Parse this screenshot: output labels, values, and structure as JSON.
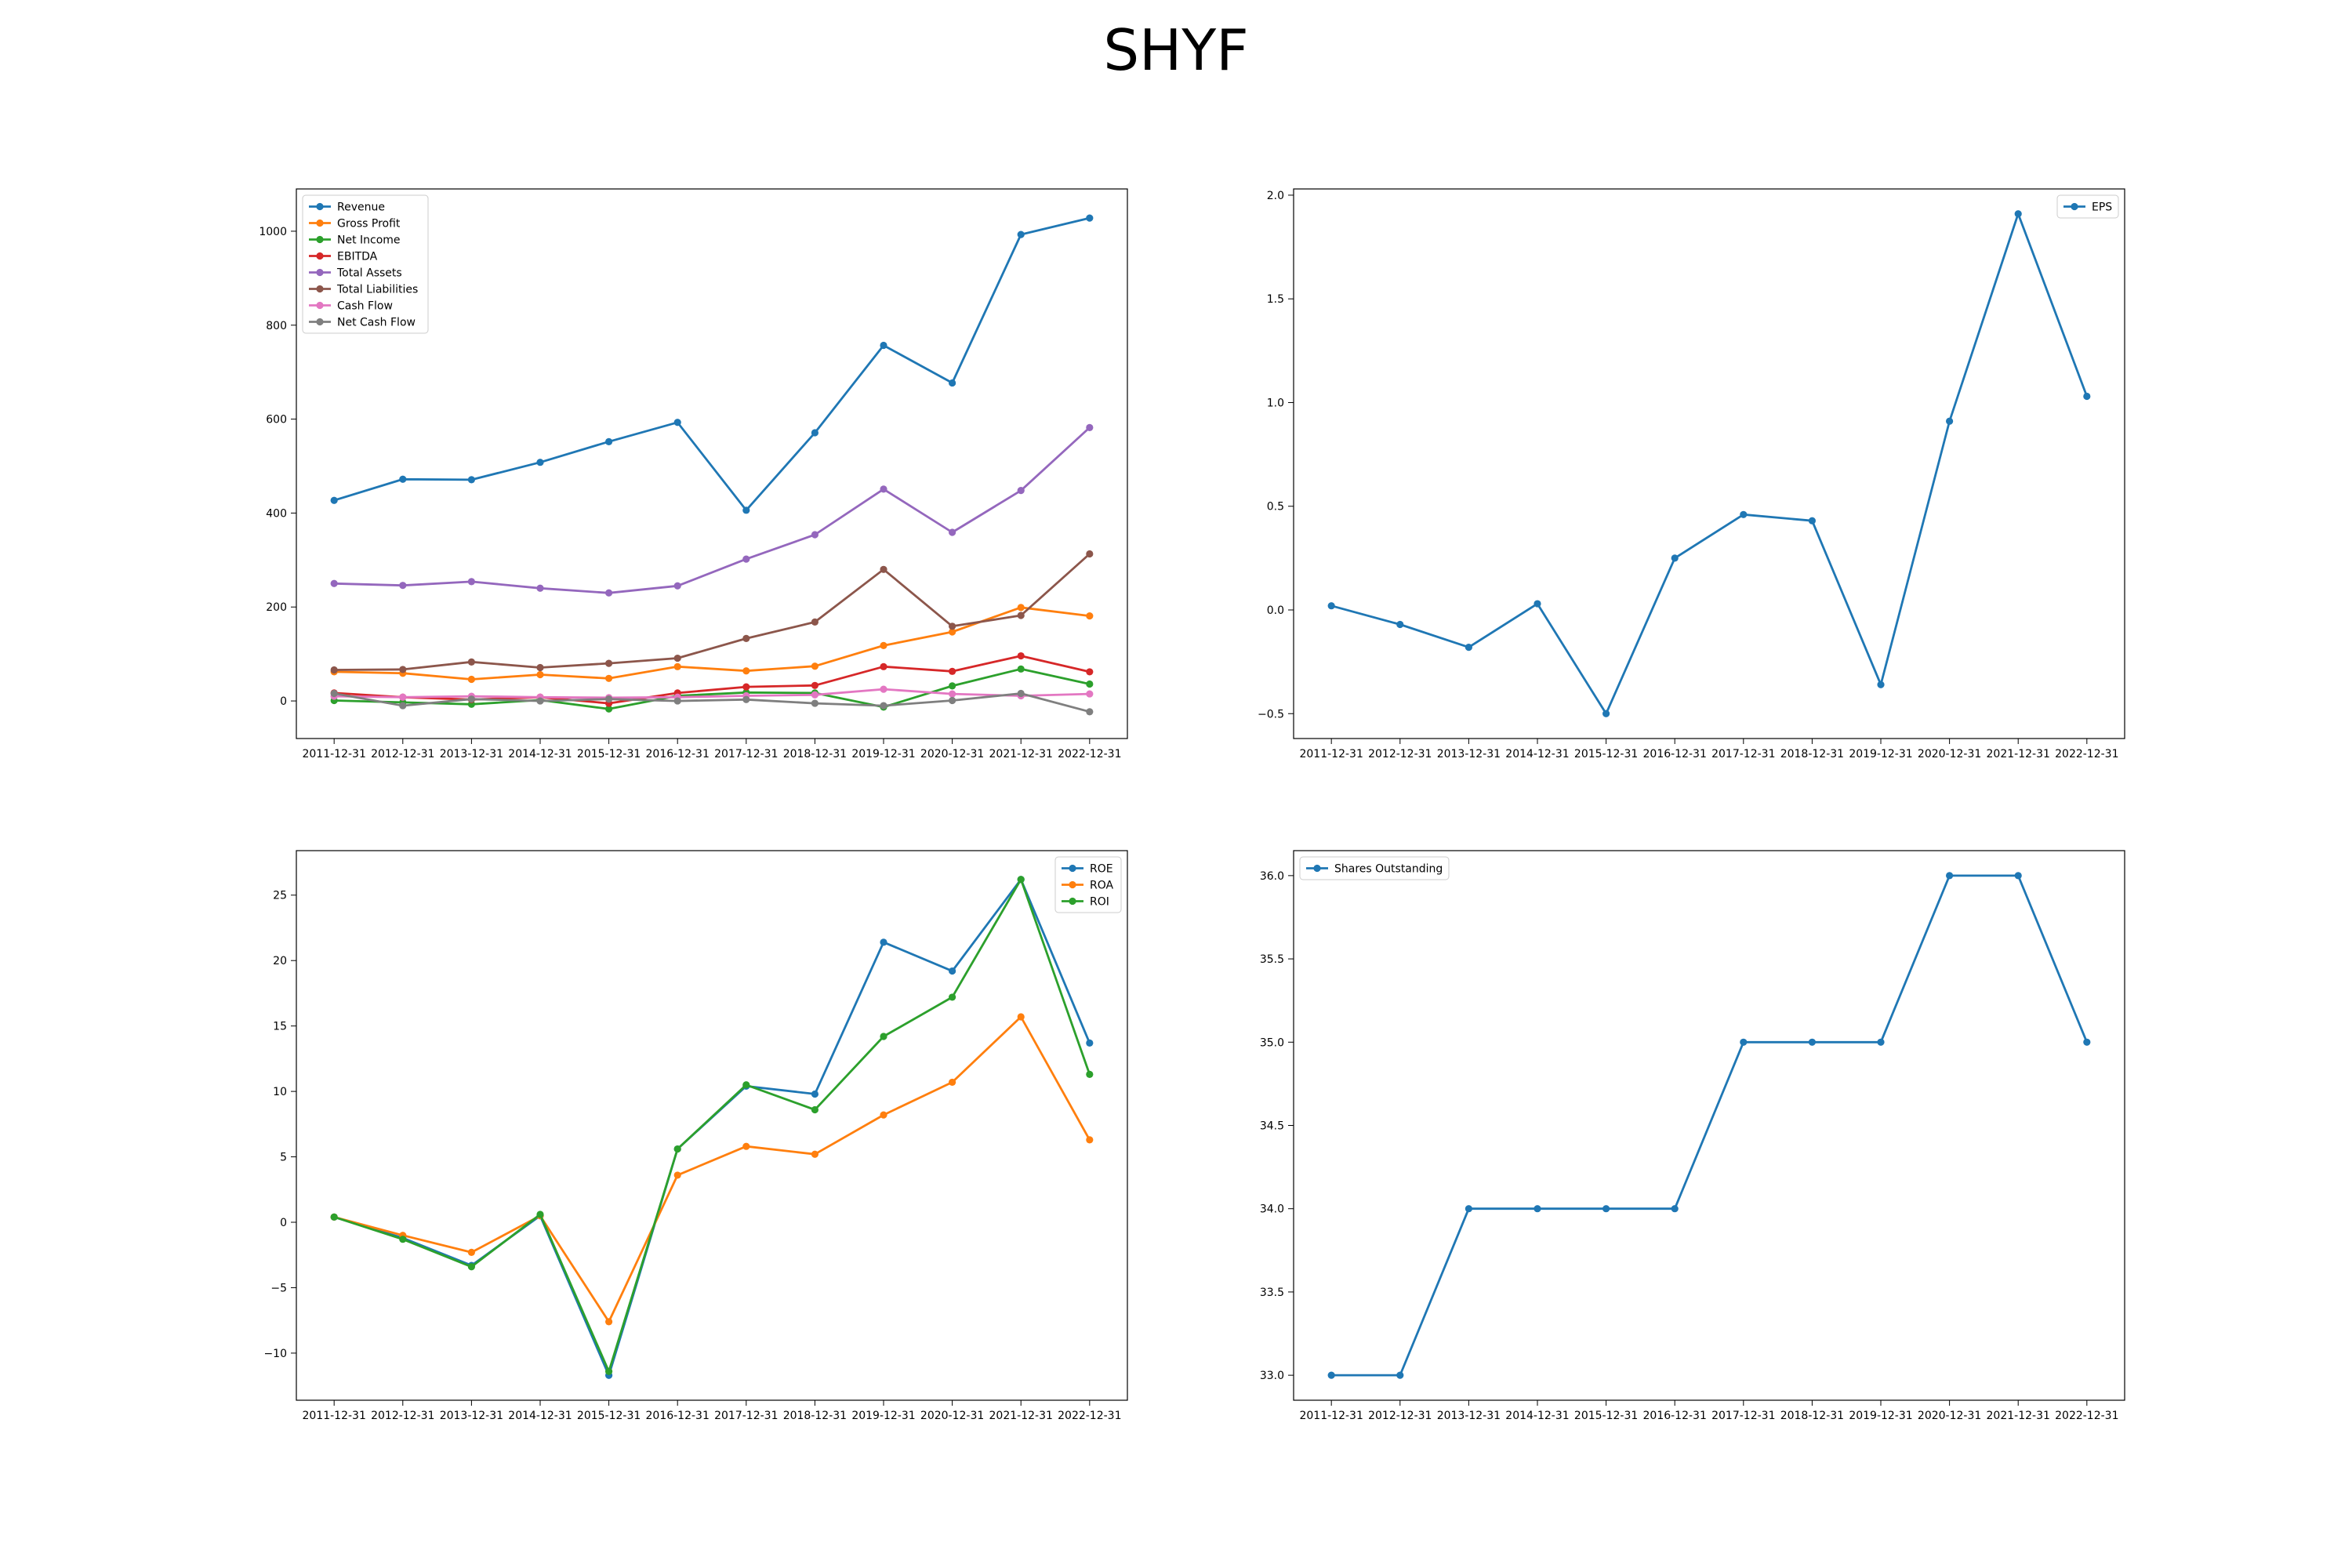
{
  "title": "SHYF",
  "chart_data": [
    {
      "type": "line",
      "categories": [
        "2011-12-31",
        "2012-12-31",
        "2013-12-31",
        "2014-12-31",
        "2015-12-31",
        "2016-12-31",
        "2017-12-31",
        "2018-12-31",
        "2019-12-31",
        "2020-12-31",
        "2021-12-31",
        "2022-12-31"
      ],
      "ylim": [
        -80,
        1090
      ],
      "yticks": [
        0,
        200,
        400,
        600,
        800,
        1000
      ],
      "ytick_labels": [
        "0",
        "200",
        "400",
        "600",
        "800",
        "1000"
      ],
      "grid": false,
      "legend": "upper left",
      "series": [
        {
          "name": "Revenue",
          "color": "#1f77b4",
          "values": [
            427,
            472,
            471,
            508,
            552,
            593,
            406,
            571,
            757,
            677,
            993,
            1028
          ]
        },
        {
          "name": "Gross Profit",
          "color": "#ff7f0e",
          "values": [
            62,
            59,
            46,
            56,
            48,
            73,
            64,
            74,
            118,
            147,
            199,
            181
          ]
        },
        {
          "name": "Net Income",
          "color": "#2ca02c",
          "values": [
            1,
            -3,
            -7,
            2,
            -17,
            11,
            18,
            17,
            -13,
            32,
            68,
            36
          ]
        },
        {
          "name": "EBITDA",
          "color": "#d62728",
          "values": [
            17,
            8,
            3,
            8,
            -5,
            17,
            30,
            33,
            73,
            63,
            96,
            62
          ]
        },
        {
          "name": "Total Assets",
          "color": "#9467bd",
          "values": [
            250,
            246,
            254,
            240,
            230,
            245,
            302,
            354,
            451,
            359,
            448,
            582
          ]
        },
        {
          "name": "Total Liabilities",
          "color": "#8c564b",
          "values": [
            66,
            67,
            83,
            71,
            80,
            91,
            133,
            168,
            280,
            159,
            182,
            313
          ]
        },
        {
          "name": "Cash Flow",
          "color": "#e377c2",
          "values": [
            10,
            8,
            10,
            8,
            7,
            8,
            11,
            13,
            25,
            15,
            11,
            15
          ]
        },
        {
          "name": "Net Cash Flow",
          "color": "#7f7f7f",
          "values": [
            16,
            -10,
            4,
            0,
            4,
            0,
            3,
            -5,
            -10,
            1,
            16,
            -23
          ]
        }
      ]
    },
    {
      "type": "line",
      "categories": [
        "2011-12-31",
        "2012-12-31",
        "2013-12-31",
        "2014-12-31",
        "2015-12-31",
        "2016-12-31",
        "2017-12-31",
        "2018-12-31",
        "2019-12-31",
        "2020-12-31",
        "2021-12-31",
        "2022-12-31"
      ],
      "ylim": [
        -0.62,
        2.03
      ],
      "yticks": [
        -0.5,
        0,
        0.5,
        1,
        1.5,
        2
      ],
      "ytick_labels": [
        "−0.5",
        "0.0",
        "0.5",
        "1.0",
        "1.5",
        "2.0"
      ],
      "grid": false,
      "legend": "upper right",
      "series": [
        {
          "name": "EPS",
          "color": "#1f77b4",
          "values": [
            0.02,
            -0.07,
            -0.18,
            0.03,
            -0.5,
            0.25,
            0.46,
            0.43,
            -0.36,
            0.91,
            1.91,
            1.03
          ]
        }
      ]
    },
    {
      "type": "line",
      "categories": [
        "2011-12-31",
        "2012-12-31",
        "2013-12-31",
        "2014-12-31",
        "2015-12-31",
        "2016-12-31",
        "2017-12-31",
        "2018-12-31",
        "2019-12-31",
        "2020-12-31",
        "2021-12-31",
        "2022-12-31"
      ],
      "ylim": [
        -13.6,
        28.4
      ],
      "yticks": [
        -10,
        -5,
        0,
        5,
        10,
        15,
        20,
        25
      ],
      "ytick_labels": [
        "−10",
        "−5",
        "0",
        "5",
        "10",
        "15",
        "20",
        "25"
      ],
      "grid": false,
      "legend": "upper right",
      "series": [
        {
          "name": "ROE",
          "color": "#1f77b4",
          "values": [
            0.4,
            -1.2,
            -3.3,
            0.5,
            -11.7,
            5.6,
            10.4,
            9.8,
            21.4,
            19.2,
            26.2,
            13.7
          ]
        },
        {
          "name": "ROA",
          "color": "#ff7f0e",
          "values": [
            0.4,
            -1.0,
            -2.3,
            0.5,
            -7.6,
            3.6,
            5.8,
            5.2,
            8.2,
            10.7,
            15.7,
            6.3
          ]
        },
        {
          "name": "ROI",
          "color": "#2ca02c",
          "values": [
            0.4,
            -1.3,
            -3.4,
            0.6,
            -11.4,
            5.6,
            10.5,
            8.6,
            14.2,
            17.2,
            26.2,
            11.3
          ]
        }
      ]
    },
    {
      "type": "line",
      "categories": [
        "2011-12-31",
        "2012-12-31",
        "2013-12-31",
        "2014-12-31",
        "2015-12-31",
        "2016-12-31",
        "2017-12-31",
        "2018-12-31",
        "2019-12-31",
        "2020-12-31",
        "2021-12-31",
        "2022-12-31"
      ],
      "ylim": [
        32.85,
        36.15
      ],
      "yticks": [
        33,
        33.5,
        34,
        34.5,
        35,
        35.5,
        36
      ],
      "ytick_labels": [
        "33.0",
        "33.5",
        "34.0",
        "34.5",
        "35.0",
        "35.5",
        "36.0"
      ],
      "grid": false,
      "legend": "upper left",
      "series": [
        {
          "name": "Shares Outstanding",
          "color": "#1f77b4",
          "values": [
            33,
            33,
            34,
            34,
            34,
            34,
            35,
            35,
            35,
            36,
            36,
            35
          ]
        }
      ]
    }
  ]
}
